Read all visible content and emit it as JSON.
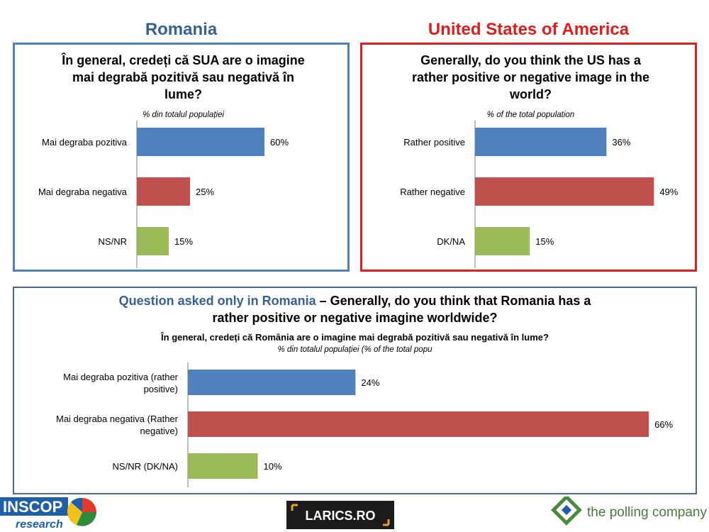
{
  "headers": {
    "romania": "Romania",
    "usa": "United States of America"
  },
  "colors": {
    "blue": "#4f81bd",
    "red": "#c0504d",
    "green": "#9bbb59",
    "ro_header": "#376092",
    "us_header": "#e01b1b"
  },
  "panel_ro": {
    "question_lines": [
      "În general, credeți că SUA are o imagine",
      "mai degrabă pozitivă sau negativă în",
      "lume?"
    ],
    "subtitle": "% din totalul populației"
  },
  "panel_us": {
    "question_lines": [
      "Generally, do you think the US has a",
      "rather positive or negative image in the",
      "world?"
    ],
    "subtitle": "%  of the total population"
  },
  "panel_bottom": {
    "question_prefix": "Question asked only in Romania",
    "question_rest_line1": " – Generally, do you think that Romania has a",
    "question_line2": "rather positive or negative imagine worldwide?",
    "romanian_question": "În general, credeți că România are o imagine mai degrabă pozitivă sau negativă în lume?",
    "subtitle": "% din totalul populației (% of the total popu"
  },
  "logos": {
    "inscop_top": "INSCOP",
    "inscop_bottom": "research",
    "larics": "LARICS.RO",
    "polling": "the polling company"
  },
  "chart_data": [
    {
      "type": "bar",
      "orientation": "horizontal",
      "categories": [
        "Mai degraba pozitiva",
        "Mai degraba negativa",
        "NS/NR"
      ],
      "values": [
        60,
        25,
        15
      ],
      "labels": [
        "60%",
        "25%",
        "15%"
      ],
      "xlim": [
        0,
        100
      ]
    },
    {
      "type": "bar",
      "orientation": "horizontal",
      "categories": [
        "Rather positive",
        "Rather negative",
        "DK/NA"
      ],
      "values": [
        36,
        49,
        15
      ],
      "labels": [
        "36%",
        "49%",
        "15%"
      ],
      "xlim": [
        0,
        100
      ]
    },
    {
      "type": "bar",
      "orientation": "horizontal",
      "categories": [
        [
          "Mai degraba pozitiva (rather",
          "positive)"
        ],
        [
          "Mai degraba negativa (Rather",
          "negative)"
        ],
        [
          "NS/NR (DK/NA)"
        ]
      ],
      "values": [
        24,
        66,
        10
      ],
      "labels": [
        "24%",
        "66%",
        "10%"
      ],
      "xlim": [
        0,
        100
      ]
    }
  ]
}
